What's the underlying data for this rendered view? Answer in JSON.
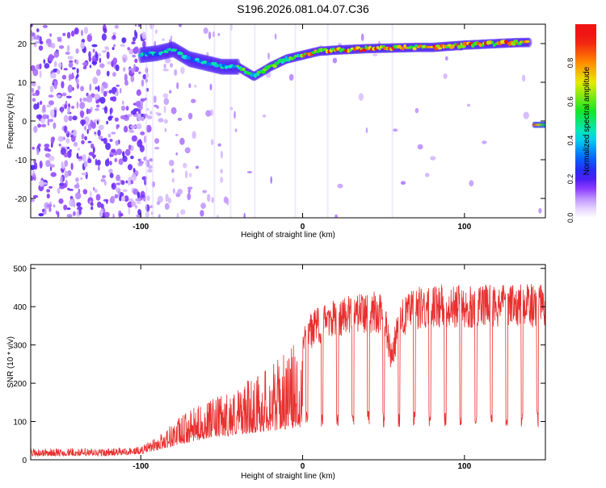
{
  "title": "S196.2026.081.04.07.C36",
  "colors": {
    "snr_line": "#e8302f",
    "axis": "#000000",
    "background": "#ffffff"
  },
  "chart_data": [
    {
      "type": "heatmap",
      "title": "S196.2026.081.04.07.C36",
      "xlabel": "Height of straight line (km)",
      "ylabel": "Frequency (Hz)",
      "xlim": [
        -168,
        150
      ],
      "ylim": [
        -25,
        25
      ],
      "xticks": [
        -100,
        0,
        100
      ],
      "xtick_labels": [
        "-100",
        "0",
        "100"
      ],
      "yticks": [
        -20,
        -10,
        0,
        10,
        20
      ],
      "ytick_labels": [
        "-20",
        "-10",
        "0",
        "10",
        "20"
      ],
      "ridge": {
        "x": [
          -100,
          -90,
          -80,
          -70,
          -60,
          -50,
          -40,
          -30,
          -20,
          -10,
          0,
          10,
          20,
          30,
          40,
          50,
          60,
          70,
          80,
          90,
          100,
          110,
          120,
          130,
          140
        ],
        "y": [
          17,
          17.5,
          18.5,
          16,
          15,
          14,
          14,
          11.5,
          14,
          16,
          17,
          18,
          18.3,
          18.5,
          18.7,
          18.8,
          18.9,
          19,
          19,
          19.3,
          19.6,
          19.8,
          20,
          20.2,
          20.3
        ]
      },
      "secondary_feature": {
        "x": [
          143,
          150
        ],
        "y": [
          -1,
          -1
        ]
      },
      "colorbar": {
        "label": "Normalized spectral amplitude",
        "range": [
          0,
          1
        ],
        "ticks": [
          0.0,
          0.2,
          0.4,
          0.6,
          0.8
        ],
        "tick_labels": [
          "0.0",
          "0.2",
          "0.4",
          "0.6",
          "0.8"
        ]
      }
    },
    {
      "type": "line",
      "xlabel": "Height of straight line (km)",
      "ylabel": "SNR (10 * v/v)",
      "xlim": [
        -168,
        150
      ],
      "ylim": [
        0,
        510
      ],
      "xticks": [
        -100,
        0,
        100
      ],
      "xtick_labels": [
        "-100",
        "0",
        "100"
      ],
      "yticks": [
        0,
        100,
        200,
        300,
        400,
        500
      ],
      "ytick_labels": [
        "0",
        "100",
        "200",
        "300",
        "400",
        "500"
      ],
      "series": [
        {
          "name": "SNR",
          "envelope_x": [
            -168,
            -140,
            -120,
            -100,
            -90,
            -80,
            -70,
            -60,
            -50,
            -40,
            -30,
            -20,
            -10,
            0,
            3,
            10,
            20,
            30,
            40,
            50,
            55,
            60,
            70,
            80,
            90,
            100,
            110,
            120,
            130,
            140,
            150
          ],
          "envelope_upper": [
            30,
            30,
            30,
            35,
            60,
            100,
            130,
            150,
            170,
            190,
            220,
            250,
            280,
            330,
            380,
            400,
            420,
            430,
            440,
            440,
            300,
            420,
            450,
            460,
            460,
            460,
            460,
            460,
            460,
            460,
            460
          ],
          "envelope_lower": [
            10,
            10,
            10,
            15,
            25,
            35,
            45,
            55,
            60,
            65,
            70,
            75,
            80,
            85,
            85,
            85,
            85,
            85,
            85,
            85,
            30,
            85,
            85,
            85,
            85,
            85,
            85,
            85,
            85,
            85,
            85
          ]
        }
      ]
    }
  ]
}
